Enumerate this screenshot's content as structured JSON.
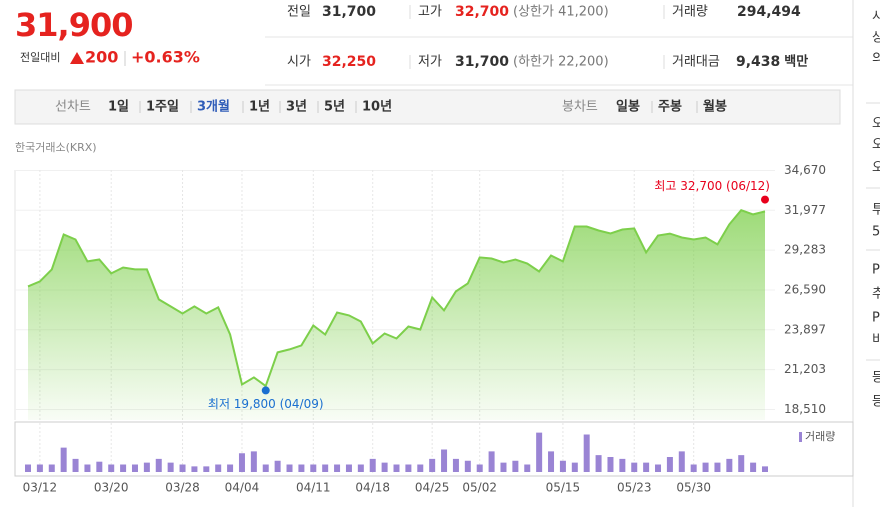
{
  "header": {
    "price": "31,900",
    "change_label": "전일대비",
    "change": "200",
    "change_rate": "+0.63%"
  },
  "stats": [
    {
      "label": "전일",
      "value": "31,700"
    },
    {
      "label": "고가",
      "value": "32,700",
      "note": "(상한가 41,200)"
    },
    {
      "label": "거래량",
      "value": "294,494"
    },
    {
      "label": "시가",
      "value": "32,250"
    },
    {
      "label": "저가",
      "value": "31,700",
      "note": "(하한가 22,200)"
    },
    {
      "label": "거래대금",
      "value": "9,438",
      "unit": "백만"
    }
  ],
  "tabs": {
    "line_label": "선차트",
    "periods": [
      "1일",
      "1주일",
      "3개월",
      "1년",
      "3년",
      "5년",
      "10년"
    ],
    "active_period": "3개월",
    "candle_label": "봉차트",
    "candles": [
      "일봉",
      "주봉",
      "월봉"
    ]
  },
  "source": "한국거래소(KRX)",
  "sidebar": [
    "시",
    "상",
    "의",
    "오",
    "오",
    "오",
    "투",
    "5",
    "P",
    "추",
    "P",
    "비",
    "등",
    "등"
  ],
  "chart_data": {
    "type": "line",
    "color": "#7dcf4b",
    "categories": [
      null,
      "03/12",
      null,
      null,
      null,
      null,
      null,
      "03/20",
      null,
      null,
      null,
      null,
      null,
      "03/28",
      null,
      null,
      null,
      null,
      "04/04",
      null,
      null,
      null,
      null,
      null,
      "04/11",
      null,
      null,
      null,
      null,
      "04/18",
      null,
      null,
      null,
      null,
      "04/25",
      null,
      null,
      null,
      "05/02",
      null,
      null,
      null,
      null,
      null,
      null,
      "05/15",
      null,
      null,
      null,
      null,
      null,
      "05/23",
      null,
      null,
      null,
      null,
      "05/30",
      null,
      null,
      null,
      null,
      null,
      null
    ],
    "values": [
      26830,
      27170,
      27980,
      30340,
      30000,
      28520,
      28650,
      27710,
      28110,
      27980,
      27980,
      25950,
      25480,
      25000,
      25480,
      25000,
      25410,
      23580,
      20200,
      20680,
      20100,
      22370,
      22570,
      22840,
      24190,
      23580,
      25070,
      24870,
      24460,
      22980,
      23650,
      23310,
      24120,
      23920,
      26080,
      25210,
      26490,
      27030,
      28790,
      28720,
      28450,
      28650,
      28380,
      27840,
      28920,
      28520,
      30880,
      30880,
      30610,
      30410,
      30680,
      30750,
      29130,
      30270,
      30400,
      30140,
      30000,
      30140,
      29670,
      31020,
      31980,
      31700,
      31900
    ],
    "ylim": [
      17800,
      34700
    ],
    "yticks": [
      {
        "value": 18510,
        "label": "18,510"
      },
      {
        "value": 21203,
        "label": "21,203"
      },
      {
        "value": 23897,
        "label": "23,897"
      },
      {
        "value": 26590,
        "label": "26,590"
      },
      {
        "value": 29283,
        "label": "29,283"
      },
      {
        "value": 31977,
        "label": "31,977"
      },
      {
        "value": 34670,
        "label": "34,670"
      }
    ],
    "grid": true,
    "high": {
      "label": "최고 32,700 (06/12)",
      "value": 32700,
      "color": "#e8001c"
    },
    "low": {
      "label": "최저 19,800 (04/09)",
      "value": 19800,
      "color": "#1a6fd0"
    },
    "volume": {
      "name": "거래량",
      "color": "#9a84d4",
      "ylim": [
        0,
        2300000
      ],
      "values": [
        392000,
        392000,
        392000,
        1274000,
        686000,
        392000,
        539000,
        392000,
        392000,
        392000,
        490000,
        686000,
        490000,
        392000,
        294000,
        294000,
        392000,
        392000,
        980000,
        1078000,
        392000,
        588000,
        392000,
        392000,
        392000,
        392000,
        392000,
        392000,
        392000,
        686000,
        490000,
        392000,
        392000,
        392000,
        686000,
        1176000,
        686000,
        588000,
        392000,
        1078000,
        490000,
        588000,
        392000,
        2058000,
        1078000,
        588000,
        490000,
        1960000,
        882000,
        784000,
        686000,
        490000,
        490000,
        392000,
        784000,
        1078000,
        392000,
        490000,
        490000,
        686000,
        882000,
        490000,
        294494
      ]
    }
  }
}
